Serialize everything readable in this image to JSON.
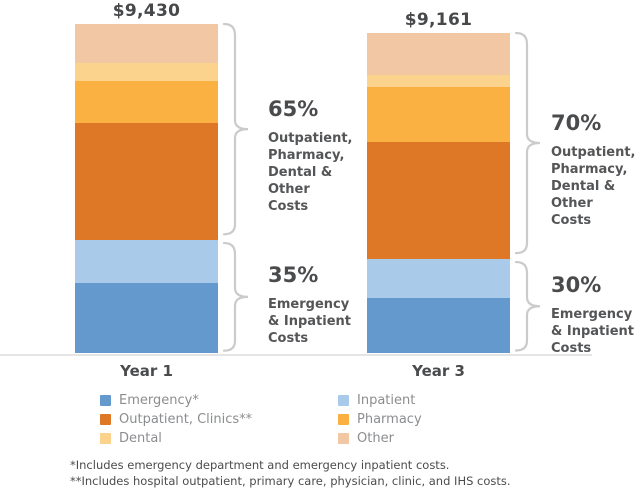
{
  "chart_data": {
    "type": "bar",
    "stacked": true,
    "categories": [
      "Year 1",
      "Year 3"
    ],
    "total_labels": [
      "$9,430",
      "$9,161"
    ],
    "totals": [
      9430,
      9161
    ],
    "series": [
      {
        "key": "emergency",
        "name": "Emergency*",
        "color": "#6499ce",
        "values": [
          2000,
          1580
        ]
      },
      {
        "key": "inpatient",
        "name": "Inpatient",
        "color": "#aacae9",
        "values": [
          1230,
          1100
        ]
      },
      {
        "key": "outpatient",
        "name": "Outpatient, Clinics**",
        "color": "#de7827",
        "values": [
          3350,
          3370
        ]
      },
      {
        "key": "pharmacy",
        "name": "Pharmacy",
        "color": "#fbb042",
        "values": [
          1230,
          1560
        ]
      },
      {
        "key": "dental",
        "name": "Dental",
        "color": "#fcd38c",
        "values": [
          490,
          370
        ]
      },
      {
        "key": "other",
        "name": "Other",
        "color": "#f2c8a4",
        "values": [
          1130,
          1181
        ]
      }
    ],
    "stack_order_top_to_bottom": [
      "other",
      "dental",
      "pharmacy",
      "outpatient",
      "inpatient",
      "emergency"
    ],
    "annotations": [
      {
        "bar": "Year 1",
        "upper_pct": "65%",
        "upper_lines": [
          "Outpatient,",
          "Pharmacy,",
          "Dental &",
          "Other",
          "Costs"
        ],
        "lower_pct": "35%",
        "lower_lines": [
          "Emergency",
          "& Inpatient",
          "Costs"
        ]
      },
      {
        "bar": "Year 3",
        "upper_pct": "70%",
        "upper_lines": [
          "Outpatient,",
          "Pharmacy,",
          "Dental &",
          "Other",
          "Costs"
        ],
        "lower_pct": "30%",
        "lower_lines": [
          "Emergency",
          "& Inpatient",
          "Costs"
        ]
      }
    ],
    "legend": {
      "columns": [
        [
          "emergency",
          "outpatient",
          "dental"
        ],
        [
          "inpatient",
          "pharmacy",
          "other"
        ]
      ]
    },
    "colors": {
      "text_dark": "#4a4b4d",
      "annotation_text": "#545557",
      "legend_text": "#8b8d90",
      "bracket": "#cbcbcb",
      "baseline": "#e5e5e5"
    }
  },
  "footnotes": [
    "*Includes emergency department and emergency inpatient costs.",
    "**Includes hospital outpatient, primary care, physician, clinic, and IHS costs."
  ]
}
